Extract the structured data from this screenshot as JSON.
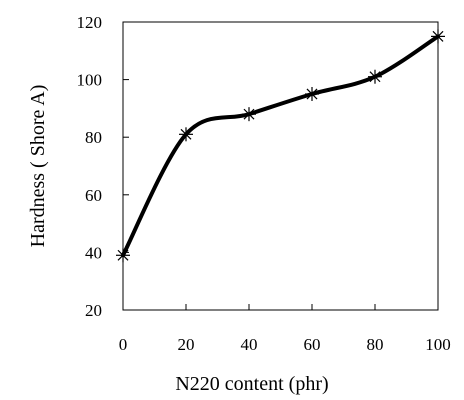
{
  "chart_data": {
    "type": "line",
    "title": "",
    "xlabel": "N220 content  (phr)",
    "ylabel": "Hardness ( Shore A)",
    "xlim": [
      0,
      100
    ],
    "ylim": [
      20,
      120
    ],
    "x_ticks": [
      "0",
      "20",
      "40",
      "60",
      "80",
      "100"
    ],
    "y_ticks": [
      "20",
      "40",
      "60",
      "80",
      "100",
      "120"
    ],
    "grid": false,
    "legend": "none",
    "series": [
      {
        "x": [
          0,
          20,
          40,
          60,
          80,
          100
        ],
        "y": [
          39,
          81,
          88,
          95,
          101,
          115
        ],
        "marker": "asterisk",
        "line": "smooth",
        "color": "#000000"
      }
    ]
  }
}
